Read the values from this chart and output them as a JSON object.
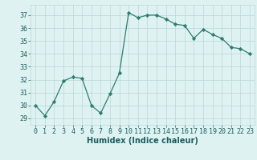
{
  "x": [
    0,
    1,
    2,
    3,
    4,
    5,
    6,
    7,
    8,
    9,
    10,
    11,
    12,
    13,
    14,
    15,
    16,
    17,
    18,
    19,
    20,
    21,
    22,
    23
  ],
  "y": [
    30,
    29.2,
    30.3,
    31.9,
    32.2,
    32.1,
    30.0,
    29.4,
    30.9,
    32.5,
    37.2,
    36.8,
    37.0,
    37.0,
    36.7,
    36.3,
    36.2,
    35.2,
    35.9,
    35.5,
    35.2,
    34.5,
    34.4,
    34.0
  ],
  "line_color": "#2e7d6e",
  "marker": "D",
  "marker_size": 2.2,
  "bg_color": "#dff2f2",
  "grid_color": "#b8d8d8",
  "xlabel": "Humidex (Indice chaleur)",
  "ylim": [
    28.5,
    37.8
  ],
  "xlim": [
    -0.5,
    23.5
  ],
  "yticks": [
    29,
    30,
    31,
    32,
    33,
    34,
    35,
    36,
    37
  ],
  "xticks": [
    0,
    1,
    2,
    3,
    4,
    5,
    6,
    7,
    8,
    9,
    10,
    11,
    12,
    13,
    14,
    15,
    16,
    17,
    18,
    19,
    20,
    21,
    22,
    23
  ],
  "tick_color": "#1a5f5f",
  "tick_fontsize": 6.0,
  "xlabel_fontsize": 7.0,
  "linewidth": 0.9
}
